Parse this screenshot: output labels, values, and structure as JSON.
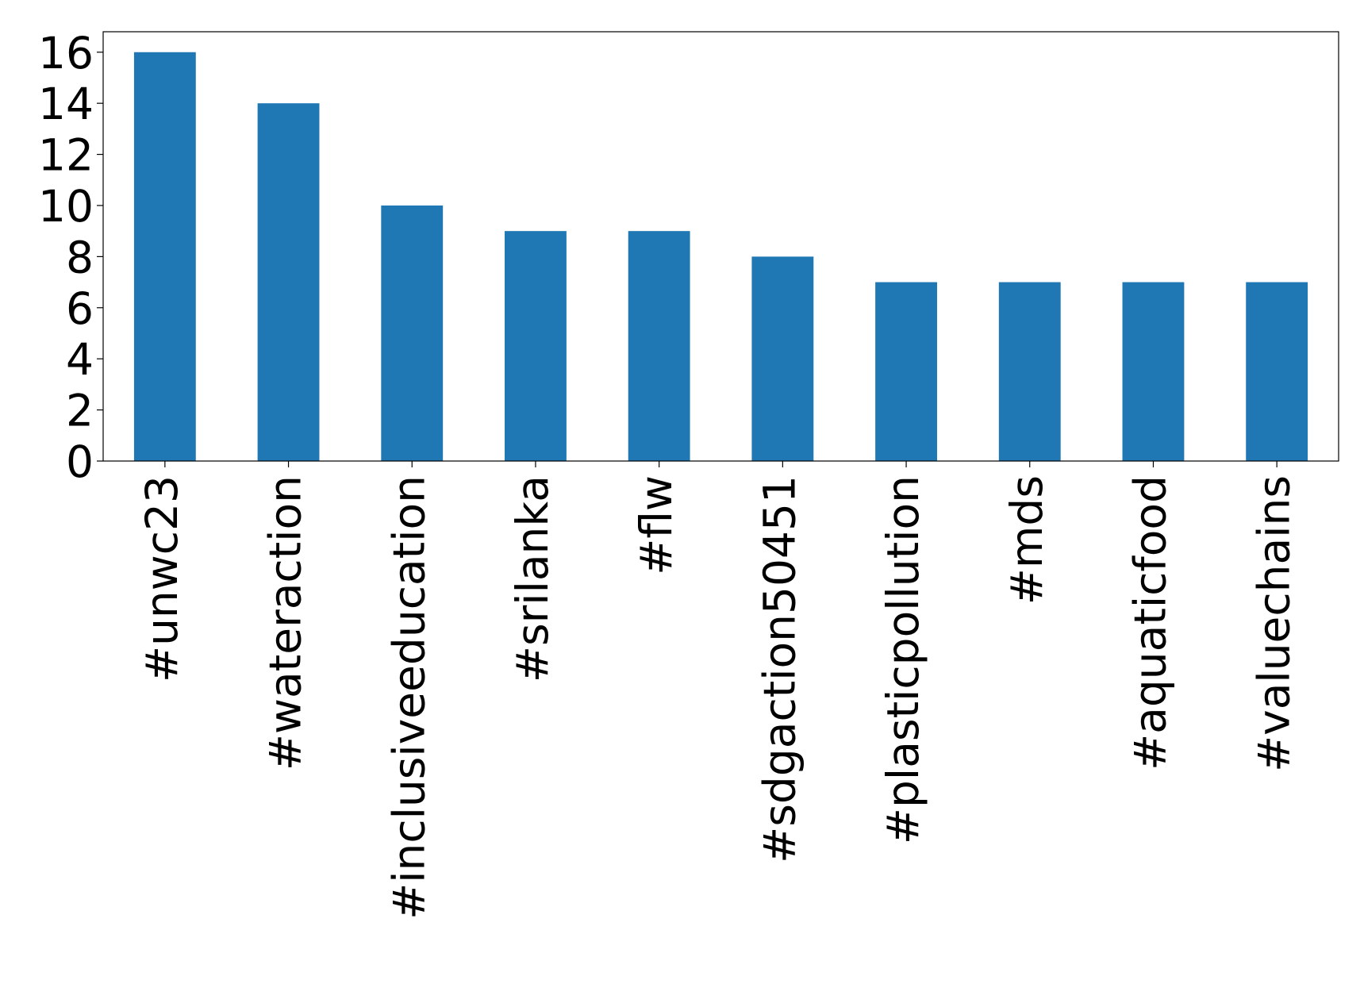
{
  "chart_data": {
    "type": "bar",
    "categories": [
      "#unwc23",
      "#wateraction",
      "#inclusiveeducation",
      "#srilanka",
      "#flw",
      "#sdgaction50451",
      "#plasticpollution",
      "#mds",
      "#aquaticfood",
      "#valuechains"
    ],
    "values": [
      16,
      14,
      10,
      9,
      9,
      8,
      7,
      7,
      7,
      7
    ],
    "color": "#1f77b4",
    "ylim": [
      0,
      16.8
    ],
    "yticks": [
      0,
      2,
      4,
      6,
      8,
      10,
      12,
      14,
      16
    ],
    "grid": false
  }
}
